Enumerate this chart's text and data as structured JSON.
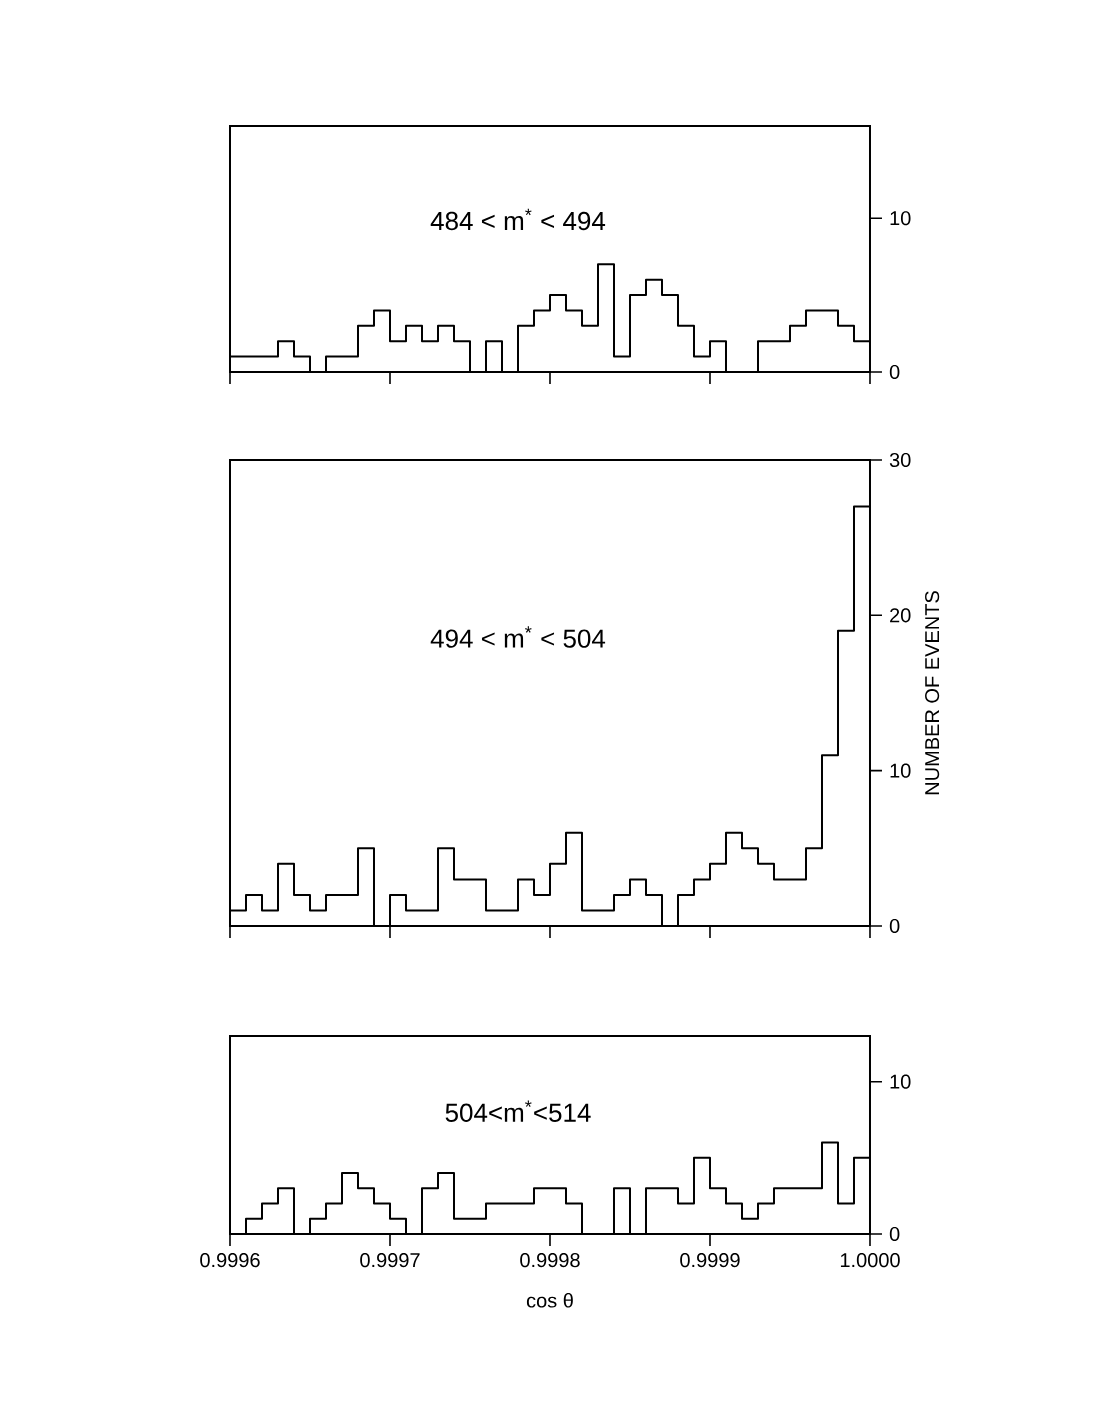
{
  "chart_data": [
    {
      "type": "histogram",
      "color": "#000000",
      "annotations": [
        "484 < m$^{*}$ < 494"
      ],
      "bins": [
        0.9996,
        0.99961,
        0.99962,
        0.99963,
        0.99964,
        0.99965,
        0.99966,
        0.99967,
        0.99968,
        0.99969,
        0.9997,
        0.99971,
        0.99972,
        0.99973,
        0.99974,
        0.99975,
        0.99976,
        0.99977,
        0.99978,
        0.99979,
        0.9998,
        0.99981,
        0.99982,
        0.99983,
        0.99984,
        0.99985,
        0.99986,
        0.99987,
        0.99988,
        0.99989,
        0.9999,
        0.99991,
        0.99992,
        0.99993,
        0.99994,
        0.99995,
        0.99996,
        0.99997,
        0.99998,
        0.99999,
        1.0
      ],
      "values": [
        1,
        1,
        1,
        2,
        1,
        0,
        1,
        1,
        3,
        4,
        2,
        3,
        2,
        3,
        2,
        0,
        2,
        0,
        3,
        4,
        5,
        4,
        3,
        7,
        1,
        5,
        6,
        5,
        3,
        1,
        2,
        0,
        0,
        2,
        2,
        3,
        4,
        4,
        3,
        2
      ],
      "xlim": [
        0.9996,
        1.0
      ],
      "ylim": [
        0,
        16
      ],
      "xticks": [
        {
          "value": 0.9996,
          "label": null
        },
        {
          "value": 0.9997,
          "label": null
        },
        {
          "value": 0.9998,
          "label": null
        },
        {
          "value": 0.9999,
          "label": null
        },
        {
          "value": 1.0,
          "label": null
        }
      ],
      "yticks": [
        0,
        10
      ],
      "tick_labels": "y"
    },
    {
      "type": "histogram",
      "color": "#000000",
      "annotations": [
        "494 < m$^{*}$ < 504"
      ],
      "ylabel": "NUMBER OF EVENTS",
      "bins": [
        0.9996,
        0.99961,
        0.99962,
        0.99963,
        0.99964,
        0.99965,
        0.99966,
        0.99967,
        0.99968,
        0.99969,
        0.9997,
        0.99971,
        0.99972,
        0.99973,
        0.99974,
        0.99975,
        0.99976,
        0.99977,
        0.99978,
        0.99979,
        0.9998,
        0.99981,
        0.99982,
        0.99983,
        0.99984,
        0.99985,
        0.99986,
        0.99987,
        0.99988,
        0.99989,
        0.9999,
        0.99991,
        0.99992,
        0.99993,
        0.99994,
        0.99995,
        0.99996,
        0.99997,
        0.99998,
        0.99999,
        1.0
      ],
      "values": [
        1,
        2,
        1,
        4,
        2,
        1,
        2,
        2,
        5,
        0,
        2,
        1,
        1,
        5,
        3,
        3,
        1,
        1,
        3,
        2,
        4,
        6,
        1,
        1,
        2,
        3,
        2,
        0,
        2,
        3,
        4,
        6,
        5,
        4,
        3,
        3,
        5,
        11,
        19,
        27
      ],
      "xlim": [
        0.9996,
        1.0
      ],
      "ylim": [
        0,
        30
      ],
      "xticks": [
        {
          "value": 0.9996,
          "label": null
        },
        {
          "value": 0.9997,
          "label": null
        },
        {
          "value": 0.9998,
          "label": null
        },
        {
          "value": 0.9999,
          "label": null
        },
        {
          "value": 1.0,
          "label": null
        }
      ],
      "yticks": [
        0,
        10,
        20,
        30
      ],
      "tick_labels": "y"
    },
    {
      "type": "histogram",
      "color": "#000000",
      "annotations": [
        "504<m$^{*}$<514"
      ],
      "xlabel": "cos θ",
      "bins": [
        0.9996,
        0.99961,
        0.99962,
        0.99963,
        0.99964,
        0.99965,
        0.99966,
        0.99967,
        0.99968,
        0.99969,
        0.9997,
        0.99971,
        0.99972,
        0.99973,
        0.99974,
        0.99975,
        0.99976,
        0.99977,
        0.99978,
        0.99979,
        0.9998,
        0.99981,
        0.99982,
        0.99983,
        0.99984,
        0.99985,
        0.99986,
        0.99987,
        0.99988,
        0.99989,
        0.9999,
        0.99991,
        0.99992,
        0.99993,
        0.99994,
        0.99995,
        0.99996,
        0.99997,
        0.99998,
        0.99999,
        1.0
      ],
      "values": [
        0,
        1,
        2,
        3,
        0,
        1,
        2,
        4,
        3,
        2,
        1,
        0,
        3,
        4,
        1,
        1,
        2,
        2,
        2,
        3,
        3,
        2,
        0,
        0,
        3,
        0,
        3,
        3,
        2,
        5,
        3,
        2,
        1,
        2,
        3,
        3,
        3,
        6,
        2,
        5
      ],
      "xlim": [
        0.9996,
        1.0
      ],
      "ylim": [
        0,
        13
      ],
      "xticks": [
        {
          "value": 0.9996,
          "label": "0.9996"
        },
        {
          "value": 0.9997,
          "label": "0.9997"
        },
        {
          "value": 0.9998,
          "label": "0.9998"
        },
        {
          "value": 0.9999,
          "label": "0.9999"
        },
        {
          "value": 1.0,
          "label": "1.0000"
        }
      ],
      "yticks": [
        0,
        10
      ]
    }
  ]
}
